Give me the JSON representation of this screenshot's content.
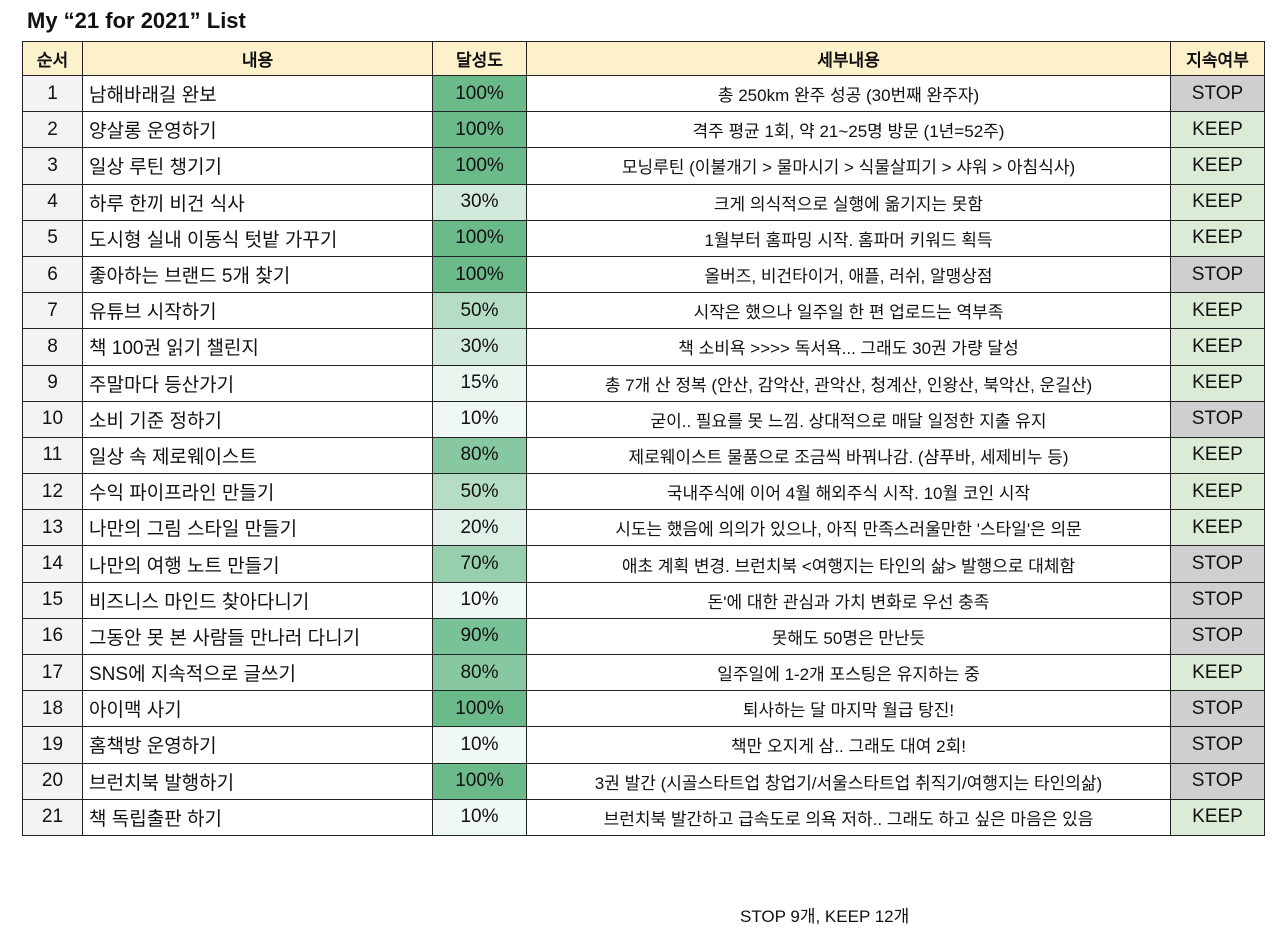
{
  "title": "My “21 for 2021” List",
  "headers": [
    "순서",
    "내용",
    "달성도",
    "세부내용",
    "지속여부"
  ],
  "colors": {
    "header": "#fdf1cc",
    "full": "#6aba8a",
    "keep": "#dcebd5",
    "stop": "#cfcfcf"
  },
  "rows": [
    {
      "no": "1",
      "item": "남해바래길 완보",
      "pct": "100%",
      "detail": "총 250km 완주 성공 (30번째 완주자)",
      "status": "STOP"
    },
    {
      "no": "2",
      "item": "양살롱 운영하기",
      "pct": "100%",
      "detail": "격주 평균 1회, 약 21~25명 방문 (1년=52주)",
      "status": "KEEP"
    },
    {
      "no": "3",
      "item": "일상 루틴 챙기기",
      "pct": "100%",
      "detail": "모닝루틴 (이불개기 > 물마시기 > 식물살피기 > 샤워 > 아침식사)",
      "status": "KEEP"
    },
    {
      "no": "4",
      "item": "하루 한끼 비건 식사",
      "pct": "30%",
      "detail": "크게 의식적으로 실행에 옮기지는 못함",
      "status": "KEEP"
    },
    {
      "no": "5",
      "item": "도시형 실내 이동식 텃밭 가꾸기",
      "pct": "100%",
      "detail": "1월부터 홈파밍 시작. 홈파머 키워드 획득",
      "status": "KEEP"
    },
    {
      "no": "6",
      "item": "좋아하는 브랜드 5개 찾기",
      "pct": "100%",
      "detail": "올버즈, 비건타이거, 애플, 러쉬, 알맹상점",
      "status": "STOP"
    },
    {
      "no": "7",
      "item": "유튜브 시작하기",
      "pct": "50%",
      "detail": "시작은 했으나 일주일 한 편 업로드는 역부족",
      "status": "KEEP"
    },
    {
      "no": "8",
      "item": "책 100권 읽기 챌린지",
      "pct": "30%",
      "detail": "책 소비욕 >>>> 독서욕... 그래도 30권 가량 달성",
      "status": "KEEP"
    },
    {
      "no": "9",
      "item": "주말마다 등산가기",
      "pct": "15%",
      "detail": "총 7개 산 정복 (안산, 감악산, 관악산, 청계산, 인왕산, 북악산, 운길산)",
      "status": "KEEP"
    },
    {
      "no": "10",
      "item": "소비 기준 정하기",
      "pct": "10%",
      "detail": "굳이.. 필요를 못 느낌. 상대적으로 매달 일정한 지출 유지",
      "status": "STOP"
    },
    {
      "no": "11",
      "item": "일상 속 제로웨이스트",
      "pct": "80%",
      "detail": "제로웨이스트 물품으로 조금씩 바꿔나감. (샴푸바, 세제비누 등)",
      "status": "KEEP"
    },
    {
      "no": "12",
      "item": "수익 파이프라인 만들기",
      "pct": "50%",
      "detail": "국내주식에 이어 4월 해외주식 시작. 10월 코인 시작",
      "status": "KEEP"
    },
    {
      "no": "13",
      "item": "나만의 그림 스타일 만들기",
      "pct": "20%",
      "detail": "시도는 했음에 의의가 있으나, 아직 만족스러울만한 '스타일'은 의문",
      "status": "KEEP"
    },
    {
      "no": "14",
      "item": "나만의 여행 노트 만들기",
      "pct": "70%",
      "detail": "애초 계획 변경. 브런치북 <여행지는 타인의 삶> 발행으로 대체함",
      "status": "STOP"
    },
    {
      "no": "15",
      "item": "비즈니스 마인드 찾아다니기",
      "pct": "10%",
      "detail": "돈'에 대한 관심과 가치 변화로 우선 충족",
      "status": "STOP"
    },
    {
      "no": "16",
      "item": "그동안 못 본 사람들 만나러 다니기",
      "pct": "90%",
      "detail": "못해도 50명은 만난듯",
      "status": "STOP"
    },
    {
      "no": "17",
      "item": "SNS에 지속적으로 글쓰기",
      "pct": "80%",
      "detail": "일주일에 1-2개 포스팅은 유지하는 중",
      "status": "KEEP"
    },
    {
      "no": "18",
      "item": "아이맥 사기",
      "pct": "100%",
      "detail": "퇴사하는 달 마지막 월급 탕진!",
      "status": "STOP"
    },
    {
      "no": "19",
      "item": "홈책방 운영하기",
      "pct": "10%",
      "detail": "책만 오지게 삼.. 그래도 대여 2회!",
      "status": "STOP"
    },
    {
      "no": "20",
      "item": "브런치북 발행하기",
      "pct": "100%",
      "detail": "3권 발간 (시골스타트업 창업기/서울스타트업 취직기/여행지는 타인의삶)",
      "status": "STOP"
    },
    {
      "no": "21",
      "item": "책 독립출판 하기",
      "pct": "10%",
      "detail": "브런치북 발간하고 급속도로 의욕 저하.. 그래도 하고 싶은 마음은 있음",
      "status": "KEEP"
    }
  ],
  "footer": "STOP 9개, KEEP 12개"
}
